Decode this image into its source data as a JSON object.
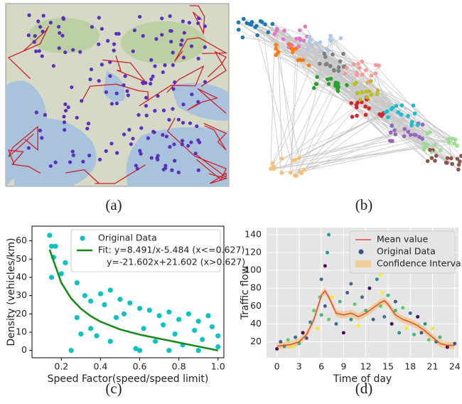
{
  "panel_labels": [
    "(a)",
    "(b)",
    "(c)",
    "(d)"
  ],
  "chart_data": [
    {
      "type": "scatter",
      "x_label": "Speed Factor(speed/speed limit)",
      "y_label": "Density (vehicles/km)",
      "xlim": [
        0.05,
        1.03
      ],
      "ylim": [
        -4,
        68
      ],
      "xticks": [
        0.2,
        0.4,
        0.6,
        0.8,
        {
          "value": 1,
          "label": "1.0"
        }
      ],
      "yticks": [
        0,
        10,
        20,
        30,
        40,
        50,
        60
      ],
      "grid": false,
      "background": "#ffffff",
      "legend": "upper right",
      "series": [
        {
          "name": "Original Data",
          "kind": "scatter",
          "color": "#00bfbf",
          "x": [
            0.14,
            0.15,
            0.16,
            0.17,
            0.15,
            0.2,
            0.22,
            0.25,
            0.28,
            0.3,
            0.32,
            0.35,
            0.38,
            0.4,
            0.42,
            0.45,
            0.48,
            0.5,
            0.52,
            0.55,
            0.58,
            0.6,
            0.62,
            0.65,
            0.68,
            0.7,
            0.72,
            0.75,
            0.78,
            0.8,
            0.82,
            0.85,
            0.88,
            0.9,
            0.92,
            0.95,
            0.97,
            1.0,
            1.0,
            0.9,
            0.75,
            0.6,
            0.45,
            0.35,
            0.28
          ],
          "values": [
            63,
            57,
            51,
            57,
            40,
            42,
            48,
            0,
            37,
            9,
            30,
            27,
            8,
            31,
            25,
            33,
            18,
            28,
            20,
            26,
            1,
            23,
            12,
            22,
            5,
            19,
            14,
            21,
            9,
            17,
            3,
            20,
            11,
            16,
            6,
            19,
            13,
            8,
            2,
            0,
            0,
            0,
            5,
            12,
            18
          ]
        },
        {
          "name": [
            "Fit: y=8.491/x-5.484 (x<=0.627)",
            "y=-21.602x+21.602 (x>0.627)"
          ],
          "kind": "line",
          "color": "#138a13",
          "x": [
            0.14,
            0.2,
            0.25,
            0.3,
            0.35,
            0.4,
            0.5,
            0.6,
            0.627,
            0.7,
            0.8,
            0.9,
            1.0
          ],
          "values": [
            55.17,
            36.97,
            28.48,
            22.82,
            18.78,
            15.74,
            11.5,
            8.67,
            8.06,
            6.48,
            4.32,
            2.16,
            0
          ]
        }
      ]
    },
    {
      "type": "scatter",
      "x_label": "Time of day",
      "y_label": "Traffic flow",
      "xlim": [
        -1.4,
        24.5
      ],
      "ylim": [
        2,
        148
      ],
      "xticks": [
        0,
        3,
        6,
        9,
        12,
        15,
        18,
        21,
        24
      ],
      "yticks": [
        20,
        40,
        60,
        80,
        100,
        120,
        140
      ],
      "grid": true,
      "background": "#e5e5e5",
      "legend": "upper right",
      "point_colors": [
        "#440154",
        "#3b528b",
        "#21918c",
        "#5ec962",
        "#fde725",
        "#31688e",
        "#35b779"
      ],
      "series": [
        {
          "name": "Confidence Interval",
          "kind": "band",
          "color": "#f0c987",
          "x": [
            0,
            1,
            2,
            3,
            4,
            5,
            6,
            6.5,
            7,
            8,
            9,
            10,
            11,
            12,
            13,
            14,
            14.5,
            15,
            16,
            17,
            18,
            19,
            20,
            21,
            22,
            23,
            24
          ],
          "lower": [
            11,
            12,
            13,
            16,
            24,
            41,
            68,
            73,
            66,
            48,
            46,
            48,
            44,
            48,
            54,
            60,
            62,
            58,
            46,
            41,
            38,
            34,
            28,
            21,
            14,
            12,
            12
          ],
          "upper": [
            19,
            20,
            21,
            24,
            32,
            49,
            76,
            81,
            74,
            56,
            54,
            56,
            52,
            56,
            62,
            68,
            70,
            66,
            54,
            49,
            46,
            42,
            36,
            29,
            22,
            20,
            20
          ]
        },
        {
          "name": "Original Data",
          "kind": "scatter",
          "color": "#3b528b",
          "x": [
            0,
            0.5,
            1,
            1.5,
            2,
            2.5,
            3,
            3.5,
            4,
            4.5,
            5,
            5.5,
            6,
            6,
            6.5,
            6.5,
            7,
            7,
            7.5,
            8,
            8.5,
            9,
            9.5,
            10,
            10.5,
            11,
            11.5,
            12,
            12.5,
            13,
            13.5,
            14,
            14,
            14.5,
            15,
            15.5,
            16,
            16.5,
            17,
            17.5,
            18,
            18.5,
            19,
            19.5,
            20,
            20.5,
            21,
            21.5,
            22,
            23,
            24,
            6.8,
            5.8,
            14.2,
            10,
            16
          ],
          "values": [
            12,
            20,
            15,
            22,
            14,
            25,
            18,
            30,
            24,
            42,
            55,
            35,
            90,
            50,
            105,
            60,
            140,
            45,
            70,
            40,
            65,
            30,
            75,
            45,
            62,
            38,
            70,
            55,
            80,
            45,
            90,
            60,
            95,
            48,
            72,
            40,
            65,
            30,
            58,
            35,
            52,
            28,
            48,
            30,
            40,
            22,
            35,
            20,
            25,
            14,
            18,
            120,
            70,
            75,
            85,
            55
          ]
        },
        {
          "name": "Mean value",
          "kind": "line",
          "color": "#e8453c",
          "x": [
            0,
            1,
            2,
            3,
            4,
            5,
            6,
            6.5,
            7,
            8,
            9,
            10,
            11,
            12,
            13,
            14,
            14.5,
            15,
            16,
            17,
            18,
            19,
            20,
            21,
            22,
            23,
            24
          ],
          "values": [
            15,
            16,
            17,
            20,
            28,
            45,
            72,
            77,
            70,
            52,
            50,
            52,
            48,
            52,
            58,
            64,
            66,
            62,
            50,
            45,
            42,
            38,
            32,
            25,
            18,
            16,
            16
          ]
        }
      ]
    }
  ]
}
